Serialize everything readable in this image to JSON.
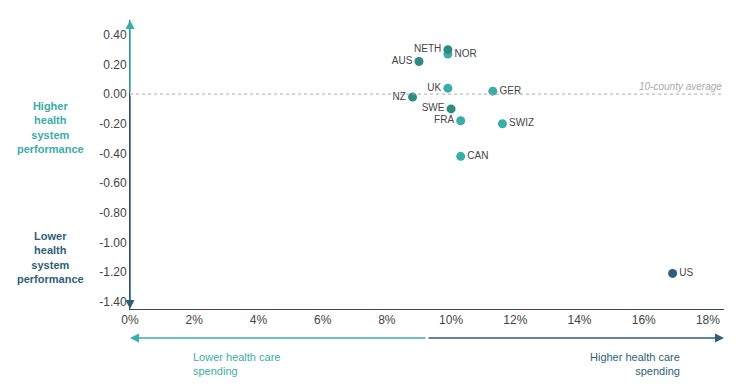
{
  "chart_data": {
    "type": "scatter",
    "series": [
      {
        "name": "NOR",
        "color": "#3aada8",
        "x": [
          0.099
        ],
        "values": [
          0.27
        ]
      },
      {
        "name": "NETH",
        "color": "#2e8b84",
        "x": [
          0.099
        ],
        "values": [
          0.3
        ]
      },
      {
        "name": "AUS",
        "color": "#2e8b84",
        "x": [
          0.09
        ],
        "values": [
          0.22
        ]
      },
      {
        "name": "UK",
        "color": "#3aada8",
        "x": [
          0.099
        ],
        "values": [
          0.04
        ]
      },
      {
        "name": "GER",
        "color": "#3aada8",
        "x": [
          0.113
        ],
        "values": [
          0.02
        ]
      },
      {
        "name": "NZ",
        "color": "#2e8b84",
        "x": [
          0.088
        ],
        "values": [
          -0.02
        ]
      },
      {
        "name": "SWE",
        "color": "#2e8b84",
        "x": [
          0.1
        ],
        "values": [
          -0.1
        ]
      },
      {
        "name": "FRA",
        "color": "#3aada8",
        "x": [
          0.103
        ],
        "values": [
          -0.18
        ]
      },
      {
        "name": "SWIZ",
        "color": "#3aada8",
        "x": [
          0.116
        ],
        "values": [
          -0.2
        ]
      },
      {
        "name": "CAN",
        "color": "#3aada8",
        "x": [
          0.103
        ],
        "values": [
          -0.42
        ]
      },
      {
        "name": "US",
        "color": "#2e5f7a",
        "x": [
          0.169
        ],
        "values": [
          -1.21
        ]
      }
    ],
    "xlim": [
      0.0,
      0.185
    ],
    "ylim": [
      -1.45,
      0.5
    ],
    "xticks": [
      {
        "value": 0.0,
        "label": "0%"
      },
      {
        "value": 0.02,
        "label": "2%"
      },
      {
        "value": 0.04,
        "label": "4%"
      },
      {
        "value": 0.06,
        "label": "6%"
      },
      {
        "value": 0.08,
        "label": "8%"
      },
      {
        "value": 0.1,
        "label": "10%"
      },
      {
        "value": 0.12,
        "label": "12%"
      },
      {
        "value": 0.14,
        "label": "14%"
      },
      {
        "value": 0.16,
        "label": "16%"
      },
      {
        "value": 0.18,
        "label": "18%"
      }
    ],
    "yticks": [
      {
        "value": 0.4,
        "label": "0.40"
      },
      {
        "value": 0.2,
        "label": "0.20"
      },
      {
        "value": 0.0,
        "label": "0.00"
      },
      {
        "value": -0.2,
        "label": "-0.20"
      },
      {
        "value": -0.4,
        "label": "-0.40"
      },
      {
        "value": -0.6,
        "label": "-0.60"
      },
      {
        "value": -0.8,
        "label": "-0.80"
      },
      {
        "value": -1.0,
        "label": "-1.00"
      },
      {
        "value": -1.2,
        "label": "-1.20"
      },
      {
        "value": -1.4,
        "label": "-1.40"
      }
    ],
    "reference_line": {
      "y": 0.0,
      "label": "10-county average",
      "color": "#aaaaaa"
    },
    "annotations": [
      {
        "text": "Higher\nhealth\nsystem\nperformance",
        "color": "#3aada8"
      },
      {
        "text": "Lower\nhealth\nsystem\nperformance",
        "color": "#2e5f7a"
      },
      {
        "text": "Lower health care\nspending",
        "color": "#3aada8"
      },
      {
        "text": "Higher health care\nspending",
        "color": "#2e5f7a"
      }
    ]
  }
}
